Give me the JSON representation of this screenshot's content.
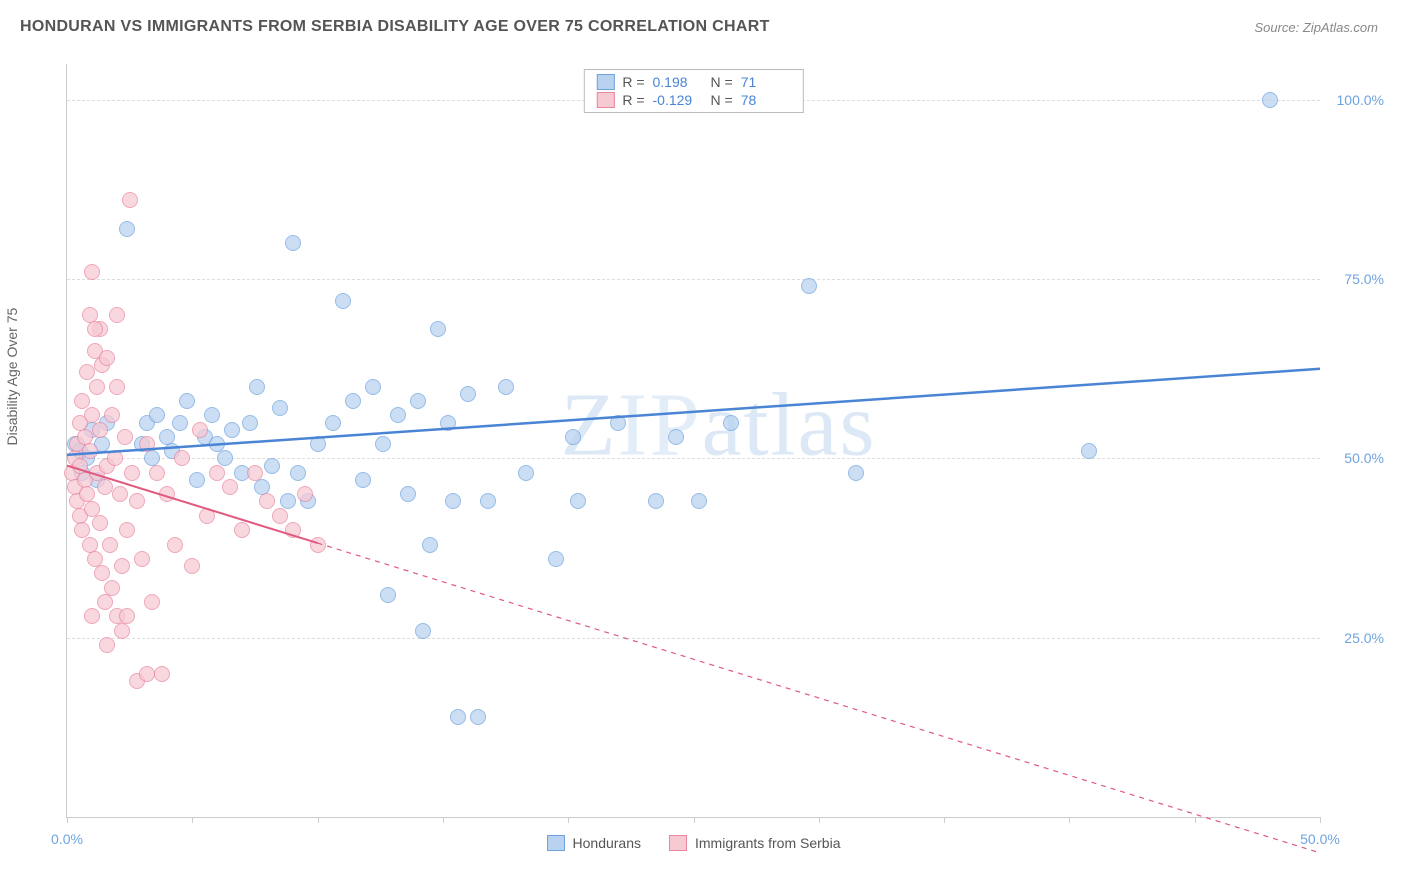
{
  "title": "HONDURAN VS IMMIGRANTS FROM SERBIA DISABILITY AGE OVER 75 CORRELATION CHART",
  "source_prefix": "Source: ",
  "source_name": "ZipAtlas.com",
  "ylabel": "Disability Age Over 75",
  "watermark": {
    "z": "Z",
    "ip": "IP",
    "atlas": "atlas"
  },
  "chart": {
    "type": "scatter",
    "xlim": [
      0,
      50
    ],
    "ylim": [
      0,
      105
    ],
    "x_ticks": [
      0,
      5,
      10,
      15,
      20,
      25,
      30,
      35,
      40,
      45,
      50
    ],
    "x_tick_labels": {
      "0": "0.0%",
      "50": "50.0%"
    },
    "y_gridlines": [
      25,
      50,
      75,
      100
    ],
    "y_tick_labels": {
      "25": "25.0%",
      "50": "50.0%",
      "75": "75.0%",
      "100": "100.0%"
    },
    "background_color": "#ffffff",
    "grid_color": "#dddddd",
    "tick_color": "#cccccc",
    "axis_label_color": "#6fa3e0",
    "marker_radius": 8,
    "marker_stroke_width": 1.2,
    "marker_fill_opacity": 0.25
  },
  "stats_legend": {
    "r_label": "R  =",
    "n_label": "N  =",
    "rows": [
      {
        "swatch_fill": "#b8d2ef",
        "swatch_stroke": "#6fa3e0",
        "r": "0.198",
        "n": "71"
      },
      {
        "swatch_fill": "#f6c9d3",
        "swatch_stroke": "#e986a0",
        "r": "-0.129",
        "n": "78"
      }
    ]
  },
  "series_legend": {
    "items": [
      {
        "label": "Hondurans",
        "swatch_fill": "#b8d2ef",
        "swatch_stroke": "#6fa3e0"
      },
      {
        "label": "Immigrants from Serbia",
        "swatch_fill": "#f6c9d3",
        "swatch_stroke": "#e986a0"
      }
    ]
  },
  "series": [
    {
      "name": "Hondurans",
      "fill": "#b8d2ef",
      "stroke": "#6fa3e0",
      "trend": {
        "x1": 0,
        "y1": 50.5,
        "x2": 50,
        "y2": 62.5,
        "solid_until_x": 50,
        "color": "#4a84d4",
        "width": 2.5
      },
      "points": [
        [
          0.3,
          52
        ],
        [
          0.5,
          51
        ],
        [
          0.6,
          48
        ],
        [
          0.8,
          50
        ],
        [
          1.0,
          54
        ],
        [
          1.2,
          47
        ],
        [
          1.4,
          52
        ],
        [
          1.6,
          55
        ],
        [
          2.4,
          82
        ],
        [
          3.0,
          52
        ],
        [
          3.2,
          55
        ],
        [
          3.4,
          50
        ],
        [
          3.6,
          56
        ],
        [
          4.0,
          53
        ],
        [
          4.2,
          51
        ],
        [
          4.5,
          55
        ],
        [
          4.8,
          58
        ],
        [
          5.2,
          47
        ],
        [
          5.5,
          53
        ],
        [
          5.8,
          56
        ],
        [
          6.0,
          52
        ],
        [
          6.3,
          50
        ],
        [
          6.6,
          54
        ],
        [
          7.0,
          48
        ],
        [
          7.3,
          55
        ],
        [
          7.6,
          60
        ],
        [
          7.8,
          46
        ],
        [
          8.2,
          49
        ],
        [
          8.5,
          57
        ],
        [
          8.8,
          44
        ],
        [
          9.0,
          80
        ],
        [
          9.2,
          48
        ],
        [
          9.6,
          44
        ],
        [
          10.0,
          52
        ],
        [
          10.6,
          55
        ],
        [
          11.0,
          72
        ],
        [
          11.4,
          58
        ],
        [
          11.8,
          47
        ],
        [
          12.2,
          60
        ],
        [
          12.6,
          52
        ],
        [
          12.8,
          31
        ],
        [
          13.2,
          56
        ],
        [
          13.6,
          45
        ],
        [
          14.0,
          58
        ],
        [
          14.2,
          26
        ],
        [
          14.5,
          38
        ],
        [
          14.8,
          68
        ],
        [
          15.2,
          55
        ],
        [
          15.4,
          44
        ],
        [
          15.6,
          14
        ],
        [
          16.0,
          59
        ],
        [
          16.4,
          14
        ],
        [
          16.8,
          44
        ],
        [
          17.5,
          60
        ],
        [
          18.3,
          48
        ],
        [
          19.5,
          36
        ],
        [
          20.2,
          53
        ],
        [
          20.4,
          44
        ],
        [
          22.0,
          55
        ],
        [
          23.5,
          44
        ],
        [
          24.3,
          53
        ],
        [
          25.2,
          44
        ],
        [
          26.5,
          55
        ],
        [
          29.6,
          74
        ],
        [
          31.5,
          48
        ],
        [
          40.8,
          51
        ],
        [
          48.0,
          100
        ]
      ]
    },
    {
      "name": "Immigrants from Serbia",
      "fill": "#f6c9d3",
      "stroke": "#e986a0",
      "trend": {
        "x1": 0,
        "y1": 49,
        "x2": 50,
        "y2": -5,
        "solid_until_x": 10,
        "color": "#e05a7e",
        "width": 2
      },
      "points": [
        [
          0.2,
          48
        ],
        [
          0.3,
          50
        ],
        [
          0.3,
          46
        ],
        [
          0.4,
          52
        ],
        [
          0.4,
          44
        ],
        [
          0.5,
          55
        ],
        [
          0.5,
          42
        ],
        [
          0.5,
          49
        ],
        [
          0.6,
          58
        ],
        [
          0.6,
          40
        ],
        [
          0.7,
          47
        ],
        [
          0.7,
          53
        ],
        [
          0.8,
          45
        ],
        [
          0.8,
          62
        ],
        [
          0.9,
          38
        ],
        [
          0.9,
          51
        ],
        [
          1.0,
          56
        ],
        [
          1.0,
          43
        ],
        [
          1.1,
          65
        ],
        [
          1.1,
          36
        ],
        [
          1.2,
          48
        ],
        [
          1.2,
          60
        ],
        [
          1.3,
          41
        ],
        [
          1.3,
          54
        ],
        [
          1.4,
          34
        ],
        [
          1.4,
          63
        ],
        [
          1.5,
          46
        ],
        [
          1.5,
          30
        ],
        [
          1.6,
          64
        ],
        [
          1.6,
          49
        ],
        [
          1.7,
          38
        ],
        [
          1.8,
          56
        ],
        [
          1.8,
          32
        ],
        [
          1.9,
          50
        ],
        [
          2.0,
          28
        ],
        [
          2.0,
          60
        ],
        [
          2.1,
          45
        ],
        [
          2.2,
          35
        ],
        [
          2.3,
          53
        ],
        [
          2.4,
          40
        ],
        [
          2.5,
          86
        ],
        [
          2.6,
          48
        ],
        [
          2.8,
          44
        ],
        [
          3.0,
          36
        ],
        [
          3.2,
          52
        ],
        [
          3.4,
          30
        ],
        [
          3.6,
          48
        ],
        [
          3.8,
          20
        ],
        [
          4.0,
          45
        ],
        [
          4.3,
          38
        ],
        [
          4.6,
          50
        ],
        [
          5.0,
          35
        ],
        [
          5.3,
          54
        ],
        [
          5.6,
          42
        ],
        [
          6.0,
          48
        ],
        [
          1.0,
          76
        ],
        [
          1.3,
          68
        ],
        [
          1.1,
          68
        ],
        [
          0.9,
          70
        ],
        [
          2.0,
          70
        ],
        [
          2.8,
          19
        ],
        [
          3.2,
          20
        ],
        [
          2.4,
          28
        ],
        [
          1.6,
          24
        ],
        [
          1.0,
          28
        ],
        [
          2.2,
          26
        ],
        [
          6.5,
          46
        ],
        [
          7.0,
          40
        ],
        [
          7.5,
          48
        ],
        [
          8.0,
          44
        ],
        [
          8.5,
          42
        ],
        [
          9.0,
          40
        ],
        [
          9.5,
          45
        ],
        [
          10.0,
          38
        ]
      ]
    }
  ]
}
